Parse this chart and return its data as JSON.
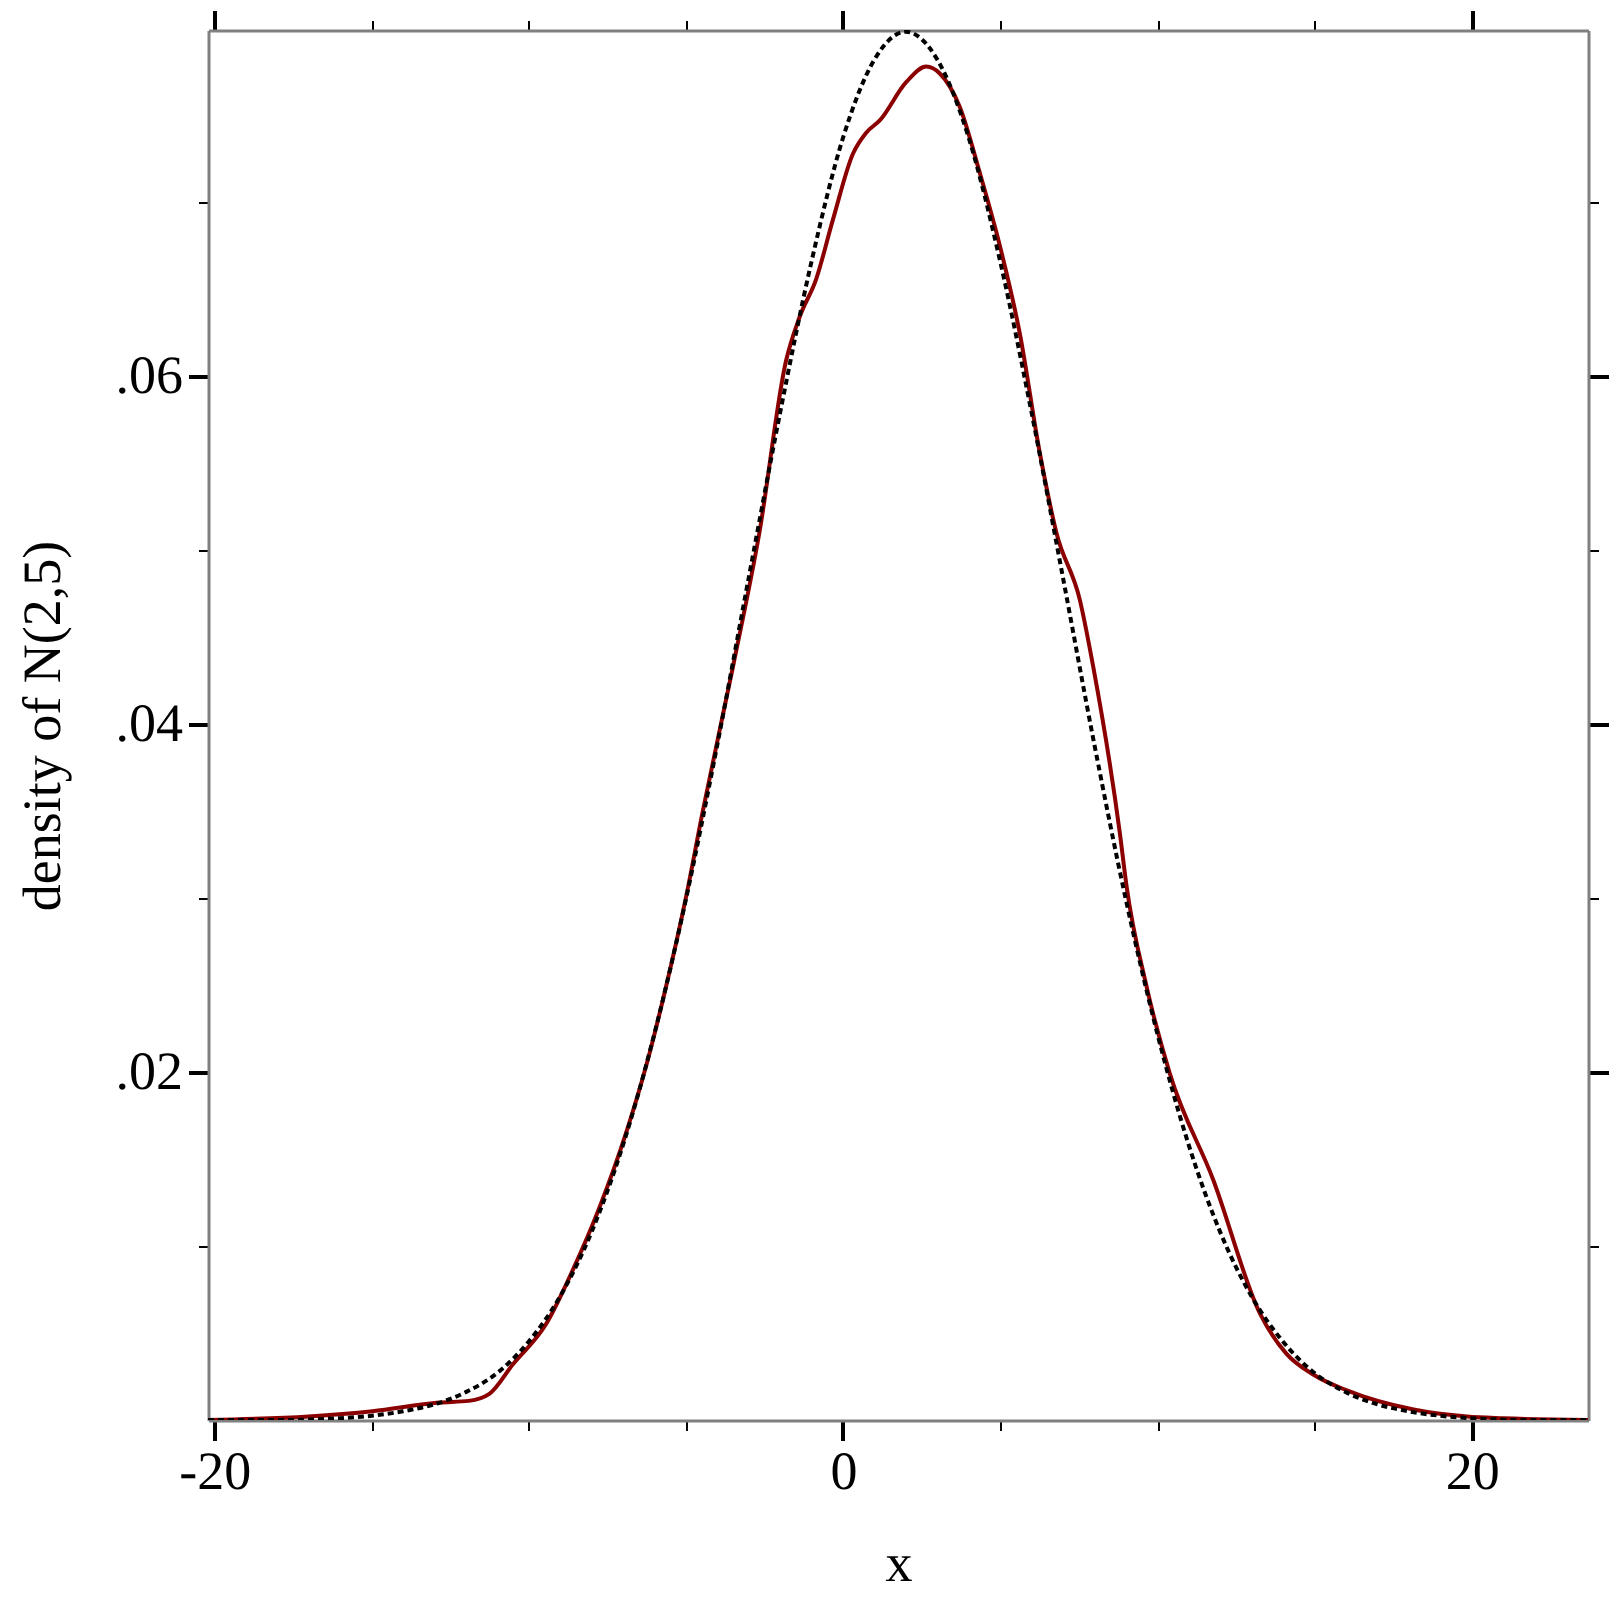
{
  "chart_data": {
    "type": "line",
    "xlabel": "x",
    "ylabel": "density of N(2,5)",
    "xlim": [
      -20.2,
      23.7
    ],
    "ylim": [
      0,
      0.0799
    ],
    "xticks": [
      -20,
      {
        "value": -15,
        "label": null
      },
      {
        "value": -10,
        "label": null
      },
      {
        "value": -5,
        "label": null
      },
      0,
      {
        "value": 5,
        "label": null
      },
      {
        "value": 10,
        "label": null
      },
      {
        "value": 15,
        "label": null
      },
      20
    ],
    "yticks": [
      {
        "value": 0.01,
        "label": null
      },
      {
        "value": 0.02,
        "label": ".02"
      },
      {
        "value": 0.03,
        "label": null
      },
      {
        "value": 0.04,
        "label": ".04"
      },
      {
        "value": 0.05,
        "label": null
      },
      {
        "value": 0.06,
        "label": ".06"
      },
      {
        "value": 0.07,
        "label": null
      }
    ],
    "series": [
      {
        "color": "#8b0000",
        "line_style": "solid",
        "x": [
          -20.2,
          -17,
          -14.97,
          -12.85,
          -11.9,
          -11.25,
          -10.5,
          -9.45,
          -8.6,
          -7.75,
          -6.9,
          -6.27,
          -5.63,
          -5,
          -4.46,
          -3.5,
          -2.66,
          -1.81,
          -1.38,
          -0.85,
          -0.32,
          0.32,
          0.74,
          1.17,
          2.01,
          2.65,
          3.08,
          3.71,
          4.35,
          4.99,
          5.62,
          6.26,
          6.79,
          7.54,
          7.96,
          8.81,
          9.02,
          9.66,
          10.4,
          11.78,
          13.27,
          14.11,
          14.97,
          16.03,
          18.15,
          19.85,
          21,
          23.7
        ],
        "values": [
          0,
          0.0002,
          0.0005,
          0.001,
          0.0011,
          0.0015,
          0.0032,
          0.0055,
          0.0086,
          0.0122,
          0.0165,
          0.0203,
          0.0249,
          0.03,
          0.035,
          0.0433,
          0.051,
          0.0609,
          0.0634,
          0.0656,
          0.069,
          0.0728,
          0.074,
          0.0747,
          0.0769,
          0.0778,
          0.0774,
          0.0755,
          0.0717,
          0.0675,
          0.0625,
          0.0556,
          0.051,
          0.0471,
          0.0433,
          0.0337,
          0.0307,
          0.0249,
          0.0199,
          0.0138,
          0.0061,
          0.0038,
          0.0026,
          0.0017,
          0.0006,
          0.0002,
          0.0001,
          0
        ]
      },
      {
        "color": "#000000",
        "line_style": "dashed",
        "x": [
          -20.2,
          -18,
          -16,
          -14,
          -13,
          -12,
          -11,
          -10,
          -9,
          -8,
          -7,
          -6,
          -5,
          -4,
          -3,
          -2,
          -1,
          0,
          1,
          2,
          3,
          4,
          5,
          6,
          7,
          8,
          9,
          10,
          11,
          12,
          13,
          14,
          15,
          16,
          17,
          18,
          20,
          22,
          23.7
        ],
        "values": [
          0,
          0,
          0.0001,
          0.0005,
          0.0009,
          0.0016,
          0.0027,
          0.0045,
          0.0071,
          0.0108,
          0.0158,
          0.0222,
          0.0299,
          0.0388,
          0.0484,
          0.0579,
          0.0666,
          0.0737,
          0.0782,
          0.0798,
          0.0782,
          0.0737,
          0.0666,
          0.0579,
          0.0484,
          0.0388,
          0.0299,
          0.0222,
          0.0158,
          0.0108,
          0.0071,
          0.0045,
          0.0027,
          0.0016,
          0.0009,
          0.0005,
          0.0001,
          0,
          0
        ]
      }
    ]
  }
}
